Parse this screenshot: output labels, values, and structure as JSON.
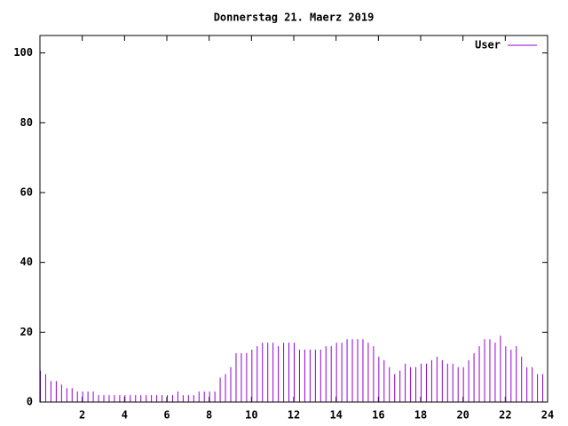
{
  "chart_data": {
    "type": "impulses",
    "title": "Donnerstag 21. Maerz 2019",
    "series": [
      {
        "name": "User",
        "color": "#9400d3",
        "x": [
          0,
          0.25,
          0.5,
          0.75,
          1,
          1.25,
          1.5,
          1.75,
          2,
          2.25,
          2.5,
          2.75,
          3,
          3.25,
          3.5,
          3.75,
          4,
          4.25,
          4.5,
          4.75,
          5,
          5.25,
          5.5,
          5.75,
          6,
          6.25,
          6.5,
          6.75,
          7,
          7.25,
          7.5,
          7.75,
          8,
          8.25,
          8.5,
          8.75,
          9,
          9.25,
          9.5,
          9.75,
          10,
          10.25,
          10.5,
          10.75,
          11,
          11.25,
          11.5,
          11.75,
          12,
          12.25,
          12.5,
          12.75,
          13,
          13.25,
          13.5,
          13.75,
          14,
          14.25,
          14.5,
          14.75,
          15,
          15.25,
          15.5,
          15.75,
          16,
          16.25,
          16.5,
          16.75,
          17,
          17.25,
          17.5,
          17.75,
          18,
          18.25,
          18.5,
          18.75,
          19,
          19.25,
          19.5,
          19.75,
          20,
          20.25,
          20.5,
          20.75,
          21,
          21.25,
          21.5,
          21.75,
          22,
          22.25,
          22.5,
          22.75,
          23,
          23.25,
          23.5,
          23.75
        ],
        "values": [
          9,
          8,
          6,
          6,
          5,
          4,
          4,
          3,
          3,
          3,
          3,
          2,
          2,
          2,
          2,
          2,
          2,
          2,
          2,
          2,
          2,
          2,
          2,
          2,
          2,
          2,
          3,
          2,
          2,
          2,
          3,
          3,
          3,
          3,
          7,
          8,
          10,
          14,
          14,
          14,
          15,
          16,
          17,
          17,
          17,
          16,
          17,
          17,
          17,
          15,
          15,
          15,
          15,
          15,
          16,
          16,
          17,
          17,
          18,
          18,
          18,
          18,
          17,
          16,
          13,
          12,
          10,
          8,
          9,
          11,
          10,
          10,
          11,
          11,
          12,
          13,
          12,
          11,
          11,
          10,
          10,
          12,
          14,
          16,
          18,
          18,
          17,
          19,
          16,
          15,
          16,
          13,
          10,
          10,
          8,
          8
        ]
      }
    ],
    "xlim": [
      0,
      24
    ],
    "xticks": [
      2,
      4,
      6,
      8,
      10,
      12,
      14,
      16,
      18,
      20,
      22,
      24
    ],
    "ylim": [
      0,
      105
    ],
    "yticks": [
      0,
      20,
      40,
      60,
      80,
      100
    ],
    "legend": "top-right"
  }
}
